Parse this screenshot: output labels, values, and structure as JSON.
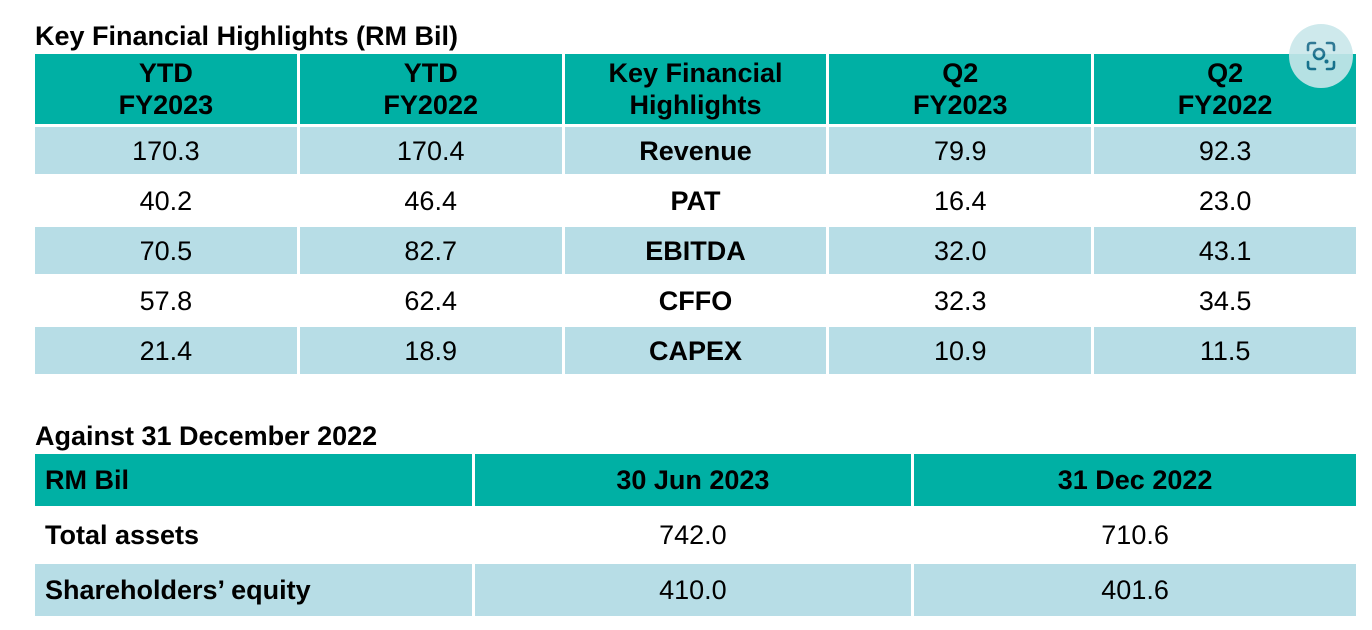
{
  "section1": {
    "title": "Key Financial Highlights (RM Bil)",
    "headers": [
      [
        "YTD",
        "FY2023"
      ],
      [
        "YTD",
        "FY2022"
      ],
      [
        "Key Financial",
        "Highlights"
      ],
      [
        "Q2",
        "FY2023"
      ],
      [
        "Q2",
        "FY2022"
      ]
    ],
    "rows": [
      {
        "ytd_fy2023": "170.3",
        "ytd_fy2022": "170.4",
        "metric": "Revenue",
        "q2_fy2023": "79.9",
        "q2_fy2022": "92.3"
      },
      {
        "ytd_fy2023": "40.2",
        "ytd_fy2022": "46.4",
        "metric": "PAT",
        "q2_fy2023": "16.4",
        "q2_fy2022": "23.0"
      },
      {
        "ytd_fy2023": "70.5",
        "ytd_fy2022": "82.7",
        "metric": "EBITDA",
        "q2_fy2023": "32.0",
        "q2_fy2022": "43.1"
      },
      {
        "ytd_fy2023": "57.8",
        "ytd_fy2022": "62.4",
        "metric": "CFFO",
        "q2_fy2023": "32.3",
        "q2_fy2022": "34.5"
      },
      {
        "ytd_fy2023": "21.4",
        "ytd_fy2022": "18.9",
        "metric": "CAPEX",
        "q2_fy2023": "10.9",
        "q2_fy2022": "11.5"
      }
    ]
  },
  "section2": {
    "title": "Against 31 December 2022",
    "headers": [
      "RM Bil",
      "30 Jun 2023",
      "31 Dec 2022"
    ],
    "rows": [
      {
        "label": "Total assets",
        "jun2023": "742.0",
        "dec2022": "710.6"
      },
      {
        "label": "Shareholders’ equity",
        "jun2023": "410.0",
        "dec2022": "401.6"
      }
    ]
  },
  "overlay": {
    "icon": "lens-scan-icon"
  },
  "colors": {
    "header": "#00b0a4",
    "band": "#b7dde6"
  }
}
